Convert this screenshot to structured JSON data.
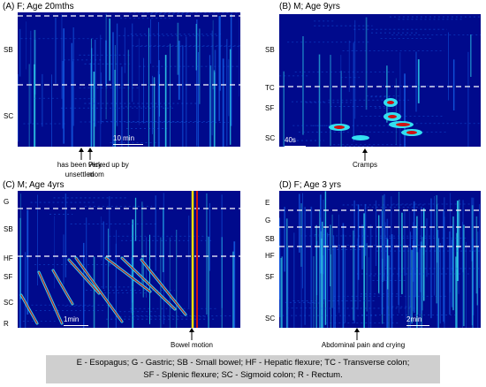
{
  "panels": [
    {
      "title": "(A) F; Age 20mths",
      "labels": [
        "SB",
        "SC"
      ],
      "scale": "10 min",
      "events": [
        "has been very unsettled",
        "Picked up by mom"
      ]
    },
    {
      "title": "(B) M; Age 9yrs",
      "labels": [
        "SB",
        "TC",
        "SF",
        "SC"
      ],
      "scale": "40s",
      "events": [
        "Cramps"
      ]
    },
    {
      "title": "(C) M; Age 4yrs",
      "labels": [
        "G",
        "SB",
        "HF",
        "SF",
        "SC",
        "R"
      ],
      "scale": "1min",
      "events": [
        "Bowel motion"
      ]
    },
    {
      "title": "(D) F; Age 3 yrs",
      "labels": [
        "E",
        "G",
        "SB",
        "HF",
        "SF",
        "SC"
      ],
      "scale": "2min",
      "events": [
        "Abdominal pain and crying"
      ]
    }
  ],
  "legend": {
    "line1": "E - Esopagus; G - Gastric; SB - Small bowel; HF - Hepatic flexure; TC - Transverse colon;",
    "line2": "SF - Splenic flexure; SC - Sigmoid colon; R - Rectum."
  },
  "colors": {
    "background": "#000a8c",
    "low": "#1560e8",
    "mid": "#33e0f0",
    "high": "#f5e000",
    "peak": "#d01010"
  }
}
